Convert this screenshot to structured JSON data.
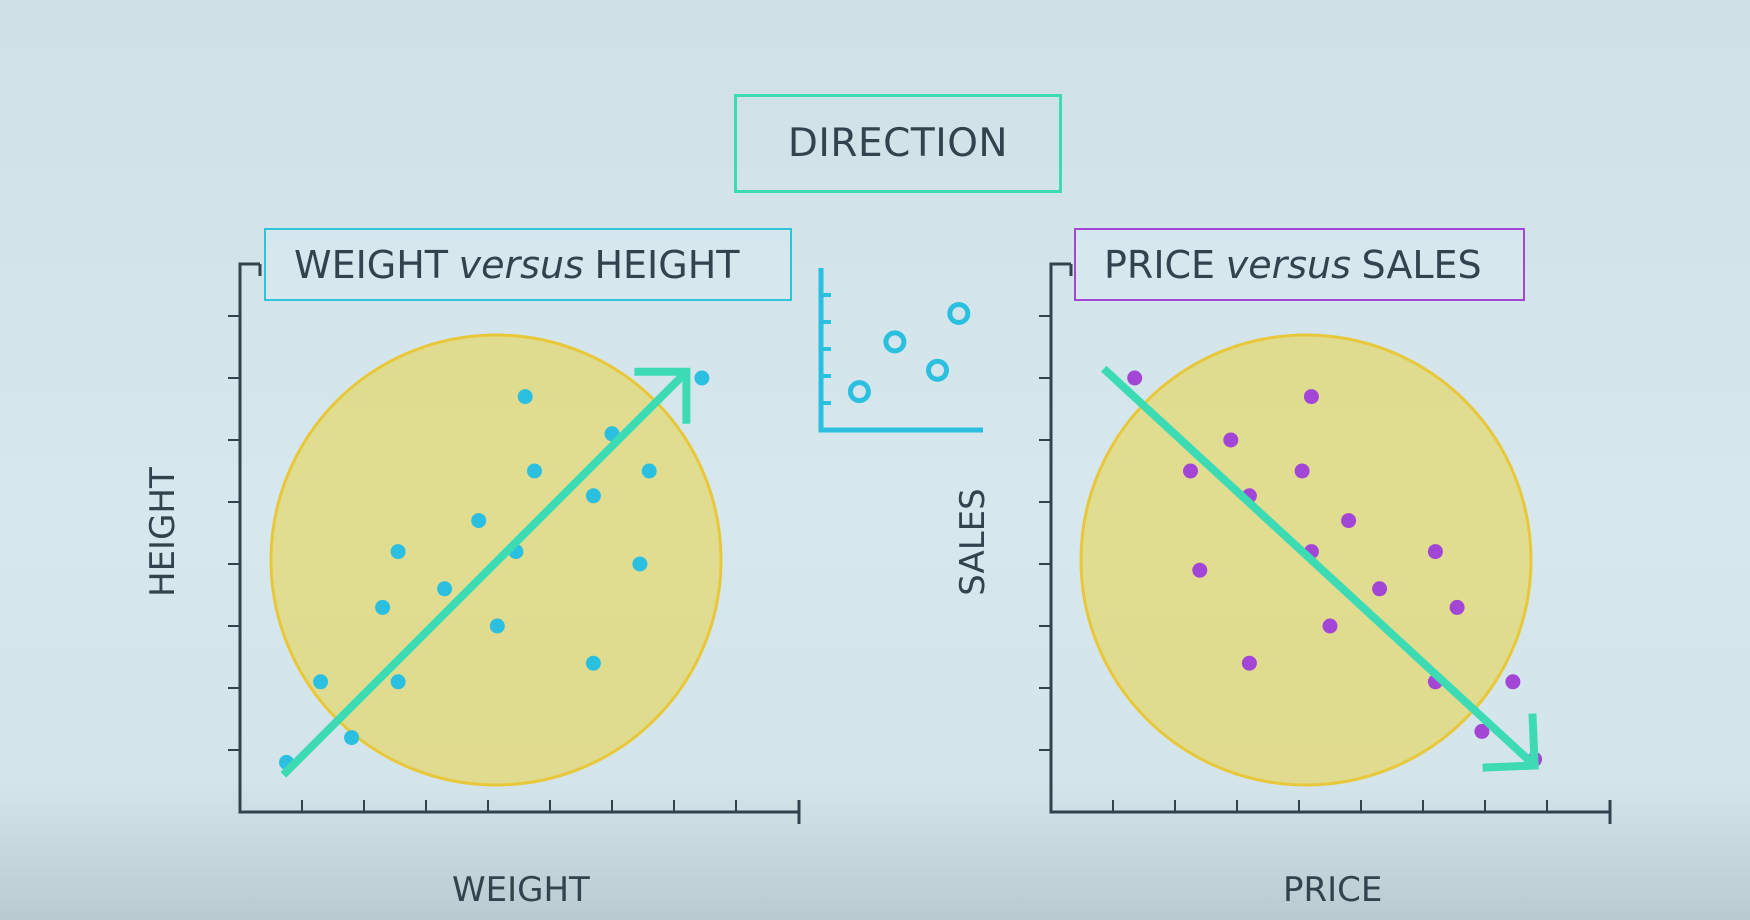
{
  "title": "DIRECTION",
  "colors": {
    "axis": "#34424e",
    "trend": "#3ddbb4",
    "circle_fill": "#e2d97f",
    "circle_stroke": "#e8c83a",
    "left_points": "#2bbfe0",
    "right_points": "#a346d6",
    "icon": "#2bbfe0"
  },
  "chart_data": [
    {
      "type": "scatter",
      "title": "WEIGHT versus HEIGHT",
      "title_parts": [
        "WEIGHT",
        "versus",
        "HEIGHT"
      ],
      "xlabel": "WEIGHT",
      "ylabel": "HEIGHT",
      "xlim": [
        0,
        9
      ],
      "ylim": [
        0,
        9
      ],
      "trend": "increasing",
      "grid": false,
      "points": [
        {
          "x": 0.75,
          "y": 0.8
        },
        {
          "x": 1.3,
          "y": 2.1
        },
        {
          "x": 1.8,
          "y": 1.2
        },
        {
          "x": 2.3,
          "y": 3.3
        },
        {
          "x": 2.55,
          "y": 2.1
        },
        {
          "x": 2.55,
          "y": 4.2
        },
        {
          "x": 3.3,
          "y": 3.6
        },
        {
          "x": 3.85,
          "y": 4.7
        },
        {
          "x": 4.15,
          "y": 3.0
        },
        {
          "x": 4.45,
          "y": 4.2
        },
        {
          "x": 4.6,
          "y": 6.7
        },
        {
          "x": 4.75,
          "y": 5.5
        },
        {
          "x": 5.7,
          "y": 5.1
        },
        {
          "x": 5.7,
          "y": 2.4
        },
        {
          "x": 6.0,
          "y": 6.1
        },
        {
          "x": 6.45,
          "y": 4.0
        },
        {
          "x": 6.6,
          "y": 5.5
        },
        {
          "x": 7.45,
          "y": 7.0
        }
      ]
    },
    {
      "type": "scatter",
      "title": "PRICE versus SALES",
      "title_parts": [
        "PRICE",
        "versus",
        "SALES"
      ],
      "xlabel": "PRICE",
      "ylabel": "SALES",
      "xlim": [
        0,
        9
      ],
      "ylim": [
        0,
        9
      ],
      "trend": "decreasing",
      "grid": false,
      "points": [
        {
          "x": 1.35,
          "y": 7.0
        },
        {
          "x": 2.25,
          "y": 5.5
        },
        {
          "x": 2.4,
          "y": 3.9
        },
        {
          "x": 2.9,
          "y": 6.0
        },
        {
          "x": 3.2,
          "y": 5.1
        },
        {
          "x": 3.2,
          "y": 2.4
        },
        {
          "x": 4.05,
          "y": 5.5
        },
        {
          "x": 4.2,
          "y": 6.7
        },
        {
          "x": 4.2,
          "y": 4.2
        },
        {
          "x": 4.5,
          "y": 3.0
        },
        {
          "x": 4.8,
          "y": 4.7
        },
        {
          "x": 5.3,
          "y": 3.6
        },
        {
          "x": 6.2,
          "y": 4.2
        },
        {
          "x": 6.2,
          "y": 2.1
        },
        {
          "x": 6.55,
          "y": 3.3
        },
        {
          "x": 6.95,
          "y": 1.3
        },
        {
          "x": 7.45,
          "y": 2.1
        },
        {
          "x": 7.8,
          "y": 0.85
        }
      ]
    }
  ],
  "icon": {
    "name": "scatter-plot-icon",
    "points": [
      [
        0.2,
        0.2
      ],
      [
        0.45,
        0.55
      ],
      [
        0.75,
        0.35
      ],
      [
        0.9,
        0.75
      ]
    ]
  }
}
